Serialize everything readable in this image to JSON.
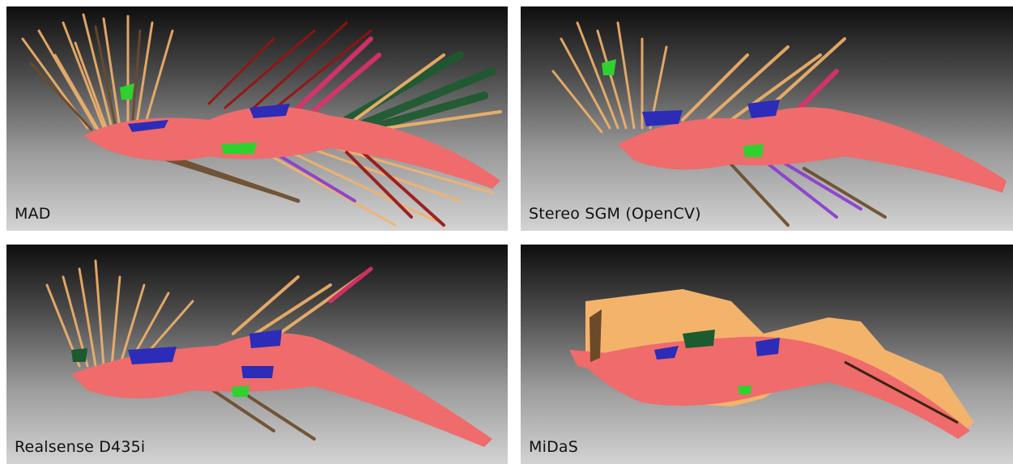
{
  "panels": [
    {
      "id": "mad",
      "label": "MAD"
    },
    {
      "id": "sgm",
      "label": "Stereo SGM (OpenCV)"
    },
    {
      "id": "realsense",
      "label": "Realsense D435i"
    },
    {
      "id": "midas",
      "label": "MiDaS"
    }
  ],
  "colors": {
    "salmon": "#f06b6b",
    "tan": "#f4b36b",
    "brown": "#6b4a2a",
    "darkred": "#9b1010",
    "blue": "#2c2cb8",
    "green": "#2fd12f",
    "darkgreen": "#1c5a30",
    "magenta": "#e0306b",
    "purple": "#8a3ad0"
  }
}
